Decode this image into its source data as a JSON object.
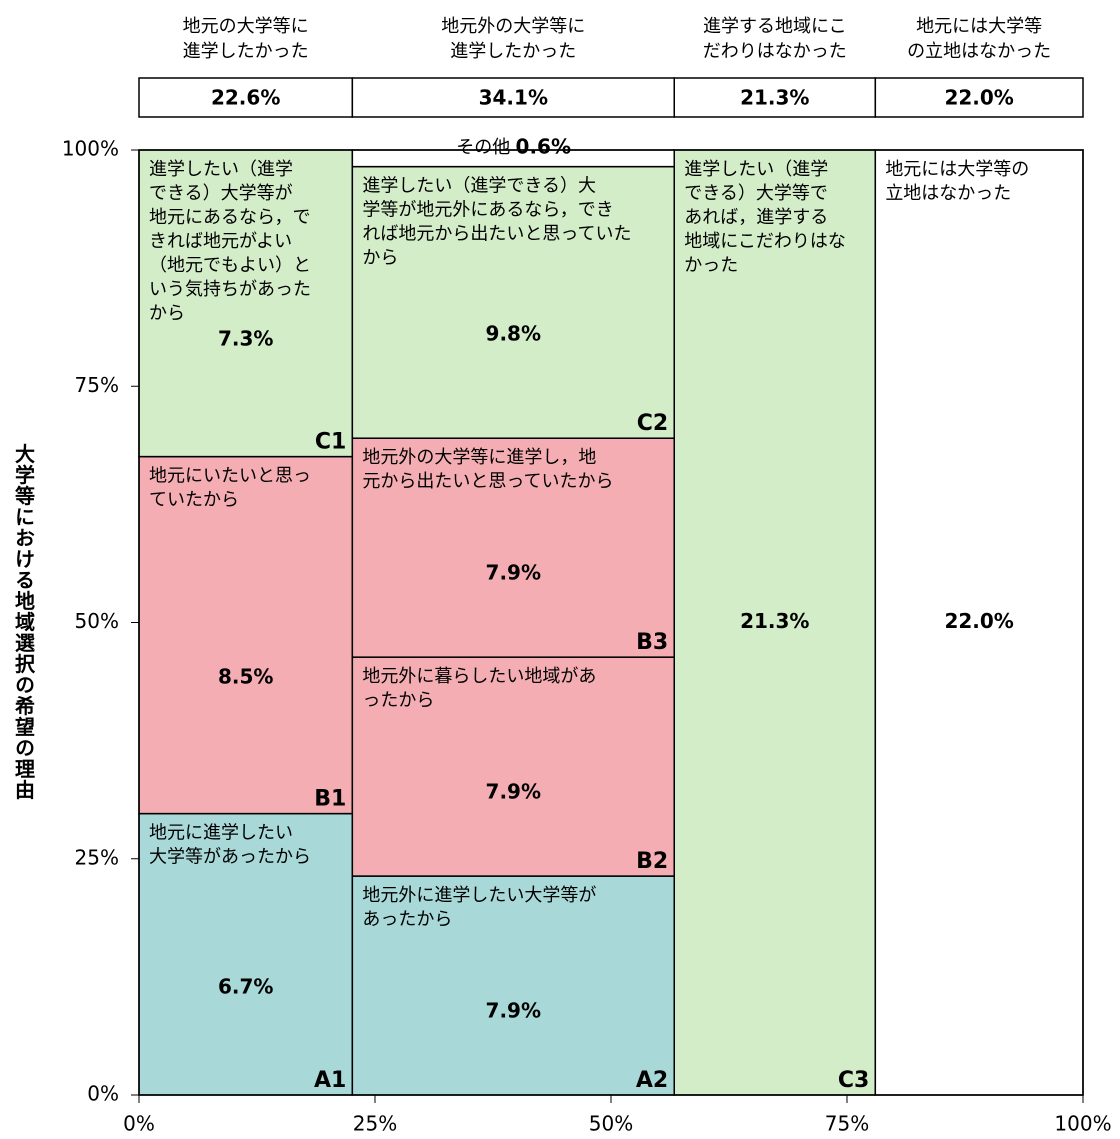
{
  "chart_data": {
    "type": "mosaic",
    "ylabel": "大学等における地域選択の希望の理由",
    "xlim": [
      0,
      100
    ],
    "ylim": [
      0,
      100
    ],
    "xticks": [
      {
        "value": 0,
        "label": "0%"
      },
      {
        "value": 25,
        "label": "25%"
      },
      {
        "value": 50,
        "label": "50%"
      },
      {
        "value": 75,
        "label": "75%"
      },
      {
        "value": 100,
        "label": "100%"
      }
    ],
    "yticks": [
      {
        "value": 0,
        "label": "0%"
      },
      {
        "value": 25,
        "label": "25%"
      },
      {
        "value": 50,
        "label": "50%"
      },
      {
        "value": 75,
        "label": "75%"
      },
      {
        "value": 100,
        "label": "100%"
      }
    ],
    "columns": [
      {
        "header": [
          "地元の大学等に",
          "進学したかった"
        ],
        "value": 22.6,
        "value_label": "22.6%",
        "segments": [
          {
            "code": "A1",
            "text": [
              "地元に進学したい",
              "大学等があったから"
            ],
            "value": 6.7,
            "value_label": "6.7%",
            "color": "#a8d8d8"
          },
          {
            "code": "B1",
            "text": [
              "地元にいたいと思っ",
              "ていたから"
            ],
            "value": 8.5,
            "value_label": "8.5%",
            "color": "#f4aeb3"
          },
          {
            "code": "C1",
            "text": [
              "進学したい（進学",
              "できる）大学等が",
              "地元にあるなら，で",
              "きれば地元がよい",
              "（地元でもよい）と",
              "いう気持ちがあった",
              "から"
            ],
            "value": 7.3,
            "value_label": "7.3%",
            "color": "#d4edc9"
          }
        ]
      },
      {
        "header": [
          "地元外の大学等に",
          "進学したかった"
        ],
        "value": 34.1,
        "value_label": "34.1%",
        "segments": [
          {
            "code": "A2",
            "text": [
              "地元外に進学したい大学等が",
              "あったから"
            ],
            "value": 7.9,
            "value_label": "7.9%",
            "color": "#a8d8d8"
          },
          {
            "code": "B2",
            "text": [
              "地元外に暮らしたい地域があ",
              "ったから"
            ],
            "value": 7.9,
            "value_label": "7.9%",
            "color": "#f4aeb3"
          },
          {
            "code": "B3",
            "text": [
              "地元外の大学等に進学し，地",
              "元から出たいと思っていたから"
            ],
            "value": 7.9,
            "value_label": "7.9%",
            "color": "#f4aeb3"
          },
          {
            "code": "C2",
            "text": [
              "進学したい（進学できる）大",
              "学等が地元外にあるなら，でき",
              "れば地元から出たいと思っていた",
              "から"
            ],
            "value": 9.8,
            "value_label": "9.8%",
            "color": "#d4edc9"
          },
          {
            "label": "その他",
            "value": 0.6,
            "value_label": "0.6%",
            "color": "#ffffff"
          }
        ]
      },
      {
        "header": [
          "進学する地域にこ",
          "だわりはなかった"
        ],
        "value": 21.3,
        "value_label": "21.3%",
        "segments": [
          {
            "code": "C3",
            "text": [
              "進学したい（進学",
              "できる）大学等で",
              "あれば，進学する",
              "地域にこだわりはな",
              "かった"
            ],
            "value": 21.3,
            "value_label": "21.3%",
            "color": "#d4edc9"
          }
        ]
      },
      {
        "header": [
          "地元には大学等",
          "の立地はなかった"
        ],
        "value": 22.0,
        "value_label": "22.0%",
        "segments": [
          {
            "text": [
              "地元には大学等の",
              "立地はなかった"
            ],
            "value": 22.0,
            "value_label": "22.0%",
            "color": "#ffffff"
          }
        ]
      }
    ]
  }
}
